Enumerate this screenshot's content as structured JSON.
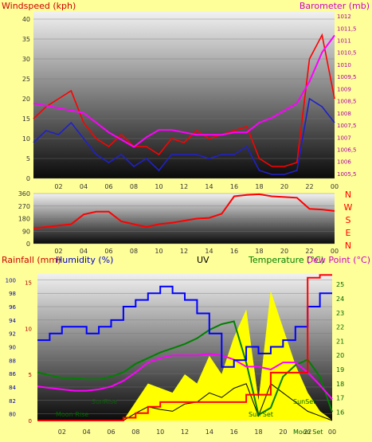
{
  "colors": {
    "background": "#ffff99",
    "wind_speed": "#ff0000",
    "wind_gust": "#2020cc",
    "barometer": "#ff00ff",
    "wind_dir": "#ff0000",
    "rainfall": "#ff0000",
    "humidity": "#0000ff",
    "uv": "#ffff00",
    "temperature": "#008000",
    "dew_point": "#ff00ff",
    "solar": "#000000",
    "axis_left_label": "#cc0000",
    "axis_right_label": "#cc00cc"
  },
  "chart_data": [
    {
      "type": "line",
      "title": "",
      "ylabel": "Windspeed (kph)",
      "y2label": "Barometer (mb)",
      "ylim": [
        0,
        42
      ],
      "y2lim": [
        1005.3,
        1012.2
      ],
      "yticks": [
        "0",
        "5",
        "10",
        "15",
        "20",
        "25",
        "30",
        "35",
        "40"
      ],
      "y2ticks": [
        "1005,5",
        "1006",
        "1006,5",
        "1007",
        "1007,5",
        "1008",
        "1008,5",
        "1009",
        "1009,5",
        "1010",
        "1010,5",
        "1011",
        "1011,5",
        "1012"
      ],
      "xticks": [
        "02",
        "04",
        "06",
        "08",
        "10",
        "12",
        "14",
        "16",
        "18",
        "20",
        "22",
        "00"
      ],
      "x_hours": [
        0,
        1,
        2,
        3,
        4,
        5,
        6,
        7,
        8,
        9,
        10,
        11,
        12,
        13,
        14,
        15,
        16,
        17,
        18,
        19,
        20,
        21,
        22,
        23,
        24
      ],
      "series": [
        {
          "name": "",
          "axis": "left",
          "values": [
            15,
            18,
            20,
            22,
            14,
            10,
            8,
            11,
            8,
            8,
            6,
            10,
            9,
            12,
            10,
            11,
            12,
            13,
            5,
            3,
            3,
            4,
            30,
            36,
            20
          ]
        },
        {
          "name": "",
          "axis": "left",
          "values": [
            9,
            12,
            11,
            14,
            10,
            6,
            4,
            6,
            3,
            5,
            2,
            6,
            6,
            6,
            5,
            6,
            6,
            8,
            2,
            1,
            1,
            2,
            20,
            18,
            14
          ]
        },
        {
          "name": "",
          "axis": "right",
          "values": [
            1008.4,
            1008.3,
            1008.2,
            1008.1,
            1008.0,
            1007.6,
            1007.2,
            1006.9,
            1006.6,
            1007.0,
            1007.3,
            1007.3,
            1007.2,
            1007.1,
            1007.1,
            1007.1,
            1007.2,
            1007.2,
            1007.6,
            1007.8,
            1008.1,
            1008.4,
            1009.3,
            1010.5,
            1011.2
          ]
        }
      ]
    },
    {
      "type": "line",
      "ylim": [
        0,
        360
      ],
      "yticks": [
        "0",
        "90",
        "180",
        "270",
        "360"
      ],
      "y2ticks": [
        "N",
        "W",
        "S",
        "E",
        "N"
      ],
      "xticks": [
        "02",
        "04",
        "06",
        "08",
        "10",
        "12",
        "14",
        "16",
        "18",
        "20",
        "22",
        "00"
      ],
      "x_hours": [
        0,
        1,
        2,
        3,
        4,
        5,
        6,
        7,
        8,
        9,
        10,
        11,
        12,
        13,
        14,
        15,
        16,
        17,
        18,
        19,
        20,
        21,
        22,
        23,
        24
      ],
      "series": [
        {
          "name": "",
          "values": [
            110,
            120,
            130,
            140,
            210,
            230,
            230,
            160,
            140,
            120,
            140,
            150,
            165,
            180,
            185,
            215,
            340,
            350,
            355,
            340,
            335,
            330,
            250,
            245,
            235
          ]
        }
      ]
    },
    {
      "type": "line",
      "ylabel": "Rainfall (mm)",
      "ylabel2": "Humidity (%)",
      "centerlabel": "UV",
      "y2label": "Temperature (°C)",
      "y2label2": "Dew Point (°C)",
      "ylim": [
        0,
        16
      ],
      "humidity_lim": [
        79,
        101
      ],
      "temp_lim": [
        15.4,
        25.8
      ],
      "rain_ticks": [
        "0",
        "5",
        "10",
        "15"
      ],
      "humidity_ticks": [
        "80",
        "82",
        "84",
        "86",
        "88",
        "90",
        "92",
        "94",
        "96",
        "98",
        "100"
      ],
      "temp_ticks": [
        "16",
        "17",
        "18",
        "19",
        "20",
        "21",
        "22",
        "23",
        "24",
        "25"
      ],
      "xticks": [
        "02",
        "04",
        "06",
        "08",
        "10",
        "12",
        "14",
        "16",
        "18",
        "20",
        "22",
        "00"
      ],
      "x_hours": [
        0,
        1,
        2,
        3,
        4,
        5,
        6,
        7,
        8,
        9,
        10,
        11,
        12,
        13,
        14,
        15,
        16,
        17,
        18,
        19,
        20,
        21,
        22,
        23,
        24
      ],
      "annotations": [
        "Moon Rise",
        "SunRise",
        "Sun Set",
        "SunSet",
        "Moon Set"
      ],
      "series": [
        {
          "name": "",
          "axis": "rain",
          "values": [
            0,
            0,
            0,
            0,
            0,
            0,
            0,
            0.3,
            0.8,
            1.5,
            2.0,
            2.0,
            2.0,
            2.0,
            2.0,
            2.0,
            2.0,
            2.8,
            2.8,
            5.2,
            5.2,
            5.2,
            15.5,
            15.8,
            15.8
          ]
        },
        {
          "name": "",
          "axis": "humidity",
          "values": [
            91,
            92,
            93,
            93,
            92,
            93,
            94,
            96,
            97,
            98,
            99,
            98,
            97,
            95,
            92,
            87,
            88,
            90,
            89,
            90,
            91,
            93,
            96,
            98,
            98
          ]
        },
        {
          "name": "",
          "axis": "temp",
          "values": [
            18.8,
            18.6,
            18.4,
            18.4,
            18.3,
            18.3,
            18.5,
            18.8,
            19.4,
            19.8,
            20.2,
            20.5,
            20.8,
            21.2,
            21.8,
            22.2,
            22.4,
            19.5,
            15.8,
            16.3,
            18.5,
            19.3,
            19.7,
            18.5,
            16.0
          ]
        },
        {
          "name": "",
          "axis": "temp",
          "values": [
            17.8,
            17.7,
            17.6,
            17.5,
            17.5,
            17.6,
            17.8,
            18.2,
            18.8,
            19.5,
            19.8,
            20.0,
            20.0,
            20.0,
            20.1,
            20.0,
            19.7,
            19.2,
            19.2,
            19.0,
            19.5,
            19.5,
            18.8,
            17.9,
            16.9
          ]
        },
        {
          "name": "",
          "axis": "rain",
          "values": [
            0,
            0,
            0,
            0,
            0,
            0,
            0,
            0,
            2,
            4,
            3.5,
            3,
            5,
            4,
            7,
            5,
            9,
            12,
            2,
            14,
            10,
            6,
            3,
            1,
            0
          ]
        },
        {
          "name": "",
          "axis": "rain",
          "values": [
            0,
            0,
            0,
            0,
            0,
            0,
            0,
            0,
            0.8,
            1.5,
            1.2,
            1.0,
            1.8,
            2.0,
            3.0,
            2.5,
            3.5,
            4,
            0.5,
            4,
            3,
            2,
            1,
            0.5,
            0
          ]
        }
      ]
    }
  ]
}
